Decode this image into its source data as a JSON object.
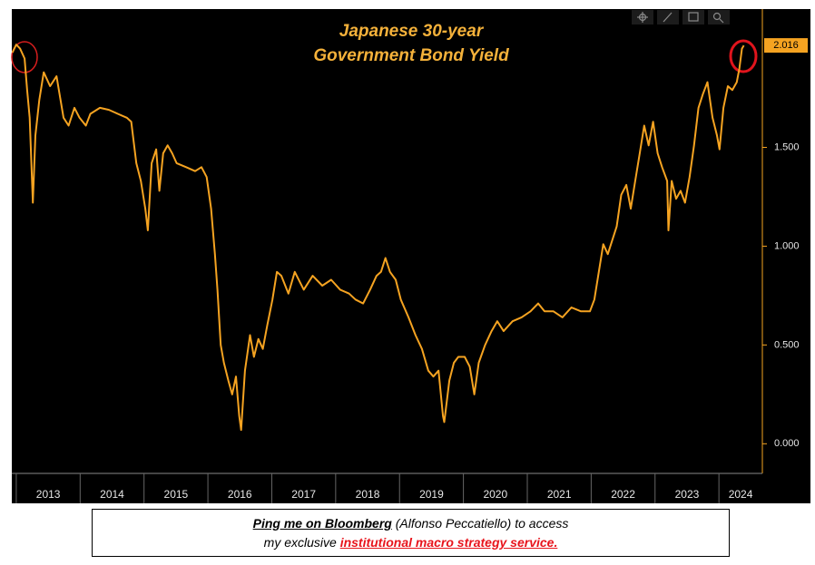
{
  "chart_data": {
    "type": "line",
    "title": [
      "Japanese 30-year",
      "Government Bond Yield"
    ],
    "x": [
      2012.94,
      2013.0,
      2013.06,
      2013.13,
      2013.17,
      2013.21,
      2013.26,
      2013.3,
      2013.36,
      2013.43,
      2013.53,
      2013.63,
      2013.74,
      2013.82,
      2013.91,
      2013.99,
      2014.09,
      2014.16,
      2014.31,
      2014.45,
      2014.59,
      2014.73,
      2014.8,
      2014.88,
      2014.95,
      2015.02,
      2015.06,
      2015.12,
      2015.19,
      2015.24,
      2015.3,
      2015.37,
      2015.44,
      2015.51,
      2015.66,
      2015.8,
      2015.9,
      2015.98,
      2016.05,
      2016.11,
      2016.15,
      2016.2,
      2016.25,
      2016.32,
      2016.38,
      2016.44,
      2016.49,
      2016.52,
      2016.58,
      2016.62,
      2016.66,
      2016.72,
      2016.79,
      2016.86,
      2016.93,
      2017.01,
      2017.08,
      2017.15,
      2017.26,
      2017.36,
      2017.5,
      2017.64,
      2017.79,
      2017.93,
      2018.07,
      2018.21,
      2018.31,
      2018.43,
      2018.54,
      2018.64,
      2018.71,
      2018.78,
      2018.85,
      2018.94,
      2019.02,
      2019.14,
      2019.25,
      2019.35,
      2019.45,
      2019.53,
      2019.61,
      2019.68,
      2019.7,
      2019.78,
      2019.85,
      2019.92,
      2020.02,
      2020.1,
      2020.17,
      2020.24,
      2020.34,
      2020.44,
      2020.53,
      2020.63,
      2020.77,
      2020.91,
      2021.05,
      2021.17,
      2021.27,
      2021.41,
      2021.55,
      2021.69,
      2021.84,
      2021.98,
      2022.05,
      2022.12,
      2022.19,
      2022.26,
      2022.33,
      2022.4,
      2022.47,
      2022.55,
      2022.62,
      2022.69,
      2022.76,
      2022.83,
      2022.9,
      2022.97,
      2023.04,
      2023.11,
      2023.19,
      2023.21,
      2023.26,
      2023.33,
      2023.4,
      2023.47,
      2023.54,
      2023.61,
      2023.68,
      2023.75,
      2023.82,
      2023.9,
      2023.97,
      2024.01,
      2024.07,
      2024.14,
      2024.21,
      2024.28,
      2024.32,
      2024.36,
      2024.39
    ],
    "series": [
      {
        "name": "Japanese 30-year Government Bond Yield",
        "color": "#f5a321",
        "values": [
          1.98,
          2.02,
          2.0,
          1.95,
          1.79,
          1.65,
          1.22,
          1.56,
          1.74,
          1.88,
          1.81,
          1.86,
          1.65,
          1.61,
          1.7,
          1.65,
          1.61,
          1.67,
          1.7,
          1.69,
          1.67,
          1.65,
          1.63,
          1.42,
          1.33,
          1.19,
          1.08,
          1.42,
          1.49,
          1.28,
          1.47,
          1.51,
          1.47,
          1.42,
          1.4,
          1.38,
          1.4,
          1.35,
          1.19,
          0.96,
          0.78,
          0.5,
          0.41,
          0.32,
          0.25,
          0.34,
          0.14,
          0.07,
          0.37,
          0.46,
          0.55,
          0.44,
          0.53,
          0.48,
          0.6,
          0.73,
          0.87,
          0.85,
          0.76,
          0.87,
          0.78,
          0.85,
          0.8,
          0.83,
          0.78,
          0.76,
          0.73,
          0.71,
          0.78,
          0.85,
          0.87,
          0.94,
          0.87,
          0.83,
          0.73,
          0.64,
          0.55,
          0.48,
          0.37,
          0.34,
          0.37,
          0.14,
          0.11,
          0.32,
          0.41,
          0.44,
          0.44,
          0.39,
          0.25,
          0.41,
          0.5,
          0.57,
          0.62,
          0.57,
          0.62,
          0.64,
          0.67,
          0.71,
          0.67,
          0.67,
          0.64,
          0.69,
          0.67,
          0.67,
          0.73,
          0.87,
          1.01,
          0.96,
          1.03,
          1.1,
          1.26,
          1.31,
          1.19,
          1.33,
          1.47,
          1.61,
          1.51,
          1.63,
          1.47,
          1.4,
          1.33,
          1.08,
          1.33,
          1.24,
          1.28,
          1.22,
          1.35,
          1.51,
          1.7,
          1.77,
          1.83,
          1.65,
          1.56,
          1.49,
          1.7,
          1.81,
          1.79,
          1.83,
          1.9,
          2.0,
          2.016
        ]
      }
    ],
    "xlim": [
      2012.93,
      2024.68
    ],
    "xticks": [
      2013,
      2014,
      2015,
      2016,
      2017,
      2018,
      2019,
      2020,
      2021,
      2022,
      2023,
      2024
    ],
    "ylim": [
      -0.15,
      2.2
    ],
    "yticks": [
      {
        "value": 0,
        "label": "0.000"
      },
      {
        "value": 0.5,
        "label": "0.500"
      },
      {
        "value": 1,
        "label": "1.000"
      },
      {
        "value": 1.5,
        "label": "1.500"
      }
    ]
  },
  "footer": {
    "link": "Ping me on Bloomberg",
    "line1_rest": " (Alfonso Peccatiello) to access",
    "line2_start": "my exclusive ",
    "service": "institutional macro strategy service."
  }
}
